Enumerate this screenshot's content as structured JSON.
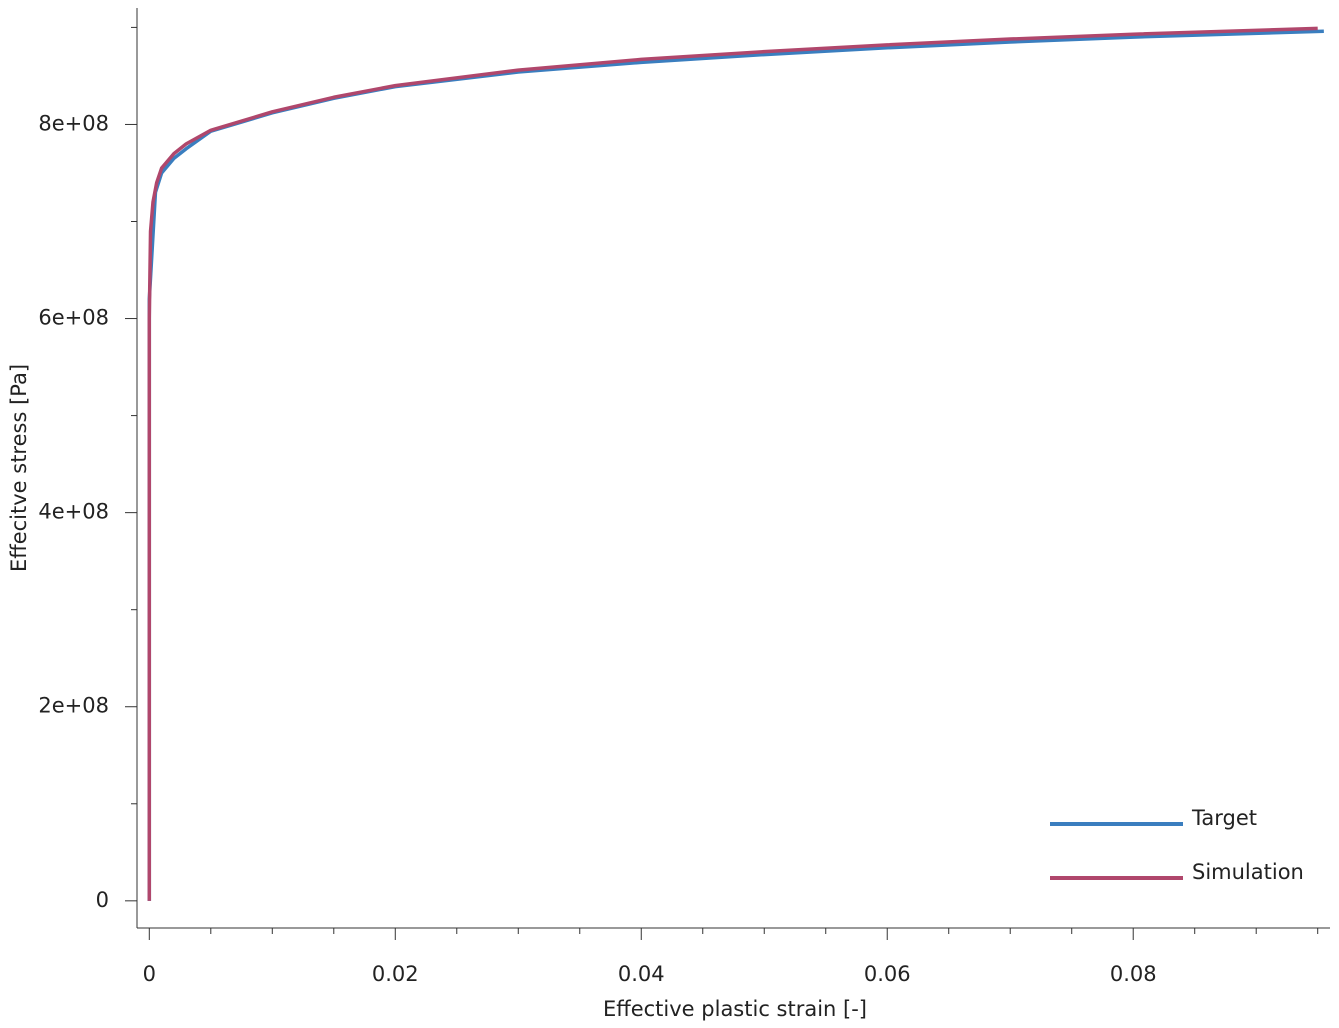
{
  "chart_data": {
    "type": "line",
    "xlabel": "Effective plastic strain [-]",
    "ylabel": "Effecitve stress [Pa]",
    "xlim": [
      -0.001,
      0.096
    ],
    "ylim": [
      -28000000,
      920000000
    ],
    "xticks": [
      0,
      0.02,
      0.04,
      0.06,
      0.08
    ],
    "xminorticks": [
      0.005,
      0.01,
      0.015,
      0.025,
      0.03,
      0.035,
      0.045,
      0.05,
      0.055,
      0.065,
      0.07,
      0.075,
      0.085,
      0.09,
      0.095
    ],
    "yticks": [
      0,
      {
        "value": 200000000,
        "label": "2e+08"
      },
      {
        "value": 400000000,
        "label": "4e+08"
      },
      {
        "value": 600000000,
        "label": "6e+08"
      },
      {
        "value": 800000000,
        "label": "8e+08"
      }
    ],
    "yminorticks": [
      100000000,
      300000000,
      500000000,
      700000000,
      900000000
    ],
    "legend": "lower right",
    "series": [
      {
        "name": "Target",
        "color": "#3a7ebf",
        "x": [
          0,
          0,
          0.0005,
          0.001,
          0.002,
          0.003,
          0.005,
          0.01,
          0.015,
          0.02,
          0.03,
          0.04,
          0.05,
          0.06,
          0.07,
          0.08,
          0.0955
        ],
        "values": [
          0,
          620000000,
          730000000,
          750000000,
          765000000,
          775000000,
          793000000,
          812000000,
          827000000,
          839000000,
          854000000,
          864000000,
          872000000,
          879000000,
          885000000,
          890000000,
          896000000
        ]
      },
      {
        "name": "Simulation",
        "color": "#b0476c",
        "x": [
          0,
          0,
          0.0001,
          0.0003,
          0.0006,
          0.001,
          0.002,
          0.003,
          0.005,
          0.01,
          0.015,
          0.02,
          0.03,
          0.04,
          0.05,
          0.06,
          0.07,
          0.08,
          0.095
        ],
        "values": [
          0,
          600000000,
          690000000,
          720000000,
          740000000,
          755000000,
          770000000,
          780000000,
          794000000,
          813000000,
          828000000,
          840000000,
          856000000,
          867000000,
          875000000,
          882000000,
          888000000,
          893000000,
          899000000
        ]
      }
    ]
  }
}
